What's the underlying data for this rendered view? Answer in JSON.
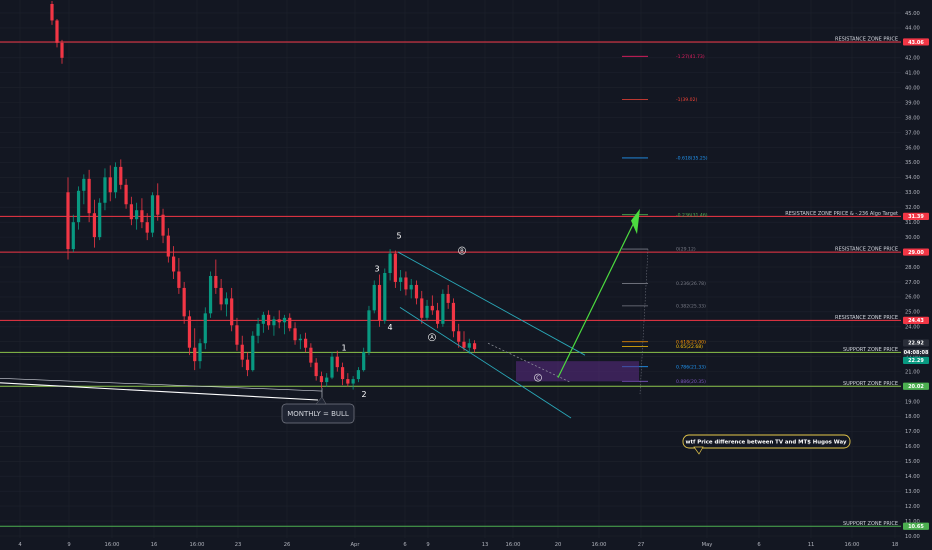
{
  "chart_data": {
    "type": "candlestick",
    "instrument_axis": {
      "y_range": [
        10.0,
        45.6
      ],
      "y_ticks": [
        "45.00",
        "44.00",
        "43.00",
        "42.00",
        "41.00",
        "40.00",
        "39.00",
        "38.00",
        "37.00",
        "36.00",
        "35.00",
        "34.00",
        "33.00",
        "32.00",
        "31.00",
        "30.00",
        "29.00",
        "28.00",
        "27.00",
        "26.00",
        "25.00",
        "24.00",
        "23.00",
        "22.00",
        "21.00",
        "20.00",
        "19.00",
        "18.00",
        "17.00",
        "16.00",
        "15.00",
        "14.00",
        "13.00",
        "12.00",
        "11.00",
        "10.00"
      ],
      "x_ticks": [
        "4",
        "9",
        "16:00",
        "16",
        "16:00",
        "23",
        "26",
        "Apr",
        "6",
        "9",
        "13",
        "16:00",
        "20",
        "16:00",
        "27",
        "May",
        "6",
        "11",
        "16:00",
        "18"
      ]
    },
    "price_badges": [
      {
        "label": "43.06",
        "y": 43.06,
        "color": "#f23645"
      },
      {
        "label": "31.39",
        "y": 31.39,
        "color": "#f23645"
      },
      {
        "label": "29.00",
        "y": 29.0,
        "color": "#f23645"
      },
      {
        "label": "24.43",
        "y": 24.43,
        "color": "#f23645"
      },
      {
        "label": "22.92",
        "y": 22.92,
        "color": "#2a2e39"
      },
      {
        "label": "04:08:08",
        "y": 22.3,
        "color": "#2a2e39"
      },
      {
        "label": "22.29",
        "y": 21.75,
        "color": "#089981"
      },
      {
        "label": "20.02",
        "y": 20.02,
        "color": "#4caf50"
      },
      {
        "label": "10.65",
        "y": 10.65,
        "color": "#4caf50"
      }
    ],
    "zones": [
      {
        "label": "RESISTANCE ZONE PRICE",
        "y": 43.06,
        "color": "#f23645"
      },
      {
        "label": "RESISTANCE ZONE PRICE & -.236 Algo Target",
        "y": 31.39,
        "color": "#f23645"
      },
      {
        "label": "RESISTANCE ZONE PRICE",
        "y": 29.0,
        "color": "#f23645"
      },
      {
        "label": "RESISTANCE ZONE PRICE",
        "y": 24.43,
        "color": "#f23645"
      },
      {
        "label": "SUPPORT ZONE PRICE",
        "y": 22.29,
        "color": "#8bc34a"
      },
      {
        "label": "SUPPORT ZONE PRICE",
        "y": 20.02,
        "color": "#8bc34a"
      },
      {
        "label": "SUPPORT ZONE PRICE",
        "y": 10.65,
        "color": "#4caf50"
      }
    ],
    "fib_levels": [
      {
        "label": "-1.27(41.73)",
        "y": 42.1,
        "color": "#e91e63"
      },
      {
        "label": "-1(39.02)",
        "y": 39.2,
        "color": "#f44336"
      },
      {
        "label": "-0.618(35.25)",
        "y": 35.3,
        "color": "#2196f3"
      },
      {
        "label": "-0.236(31.46)",
        "y": 31.5,
        "color": "#4caf50"
      },
      {
        "label": "0(29.12)",
        "y": 29.2,
        "color": "#787b86"
      },
      {
        "label": "0.236(26.78)",
        "y": 26.9,
        "color": "#787b86"
      },
      {
        "label": "0.382(25.33)",
        "y": 25.4,
        "color": "#787b86"
      },
      {
        "label": "0.618(23.00)",
        "y": 23.0,
        "color": "#ff9800"
      },
      {
        "label": "0.65(22.68)",
        "y": 22.68,
        "color": "#ffc107"
      },
      {
        "label": "0.786(21.33)",
        "y": 21.33,
        "color": "#2196f3"
      },
      {
        "label": "0.886(20.35)",
        "y": 20.35,
        "color": "#7e57c2"
      }
    ],
    "wave_labels": [
      "1",
      "2",
      "3",
      "4",
      "5",
      "A",
      "B",
      "C"
    ],
    "annotations": {
      "monthly": "MONTHLY = BULL",
      "note": "wtf Price difference between TV and MT$ Hugos Way"
    },
    "candles": [
      [
        45.6,
        45.8,
        44.2,
        44.5
      ],
      [
        44.5,
        44.6,
        42.7,
        43.0
      ],
      [
        43.0,
        43.2,
        41.6,
        42.0
      ],
      [
        33.0,
        34.0,
        28.5,
        29.2
      ],
      [
        29.2,
        31.5,
        29.0,
        31.0
      ],
      [
        31.0,
        33.4,
        30.5,
        33.1
      ],
      [
        33.1,
        34.2,
        32.2,
        33.9
      ],
      [
        33.9,
        34.5,
        31.0,
        31.6
      ],
      [
        31.6,
        32.5,
        29.3,
        30.0
      ],
      [
        30.0,
        32.6,
        29.8,
        32.3
      ],
      [
        32.3,
        34.6,
        31.8,
        34.0
      ],
      [
        34.0,
        34.8,
        32.4,
        33.0
      ],
      [
        33.0,
        35.0,
        32.6,
        34.7
      ],
      [
        34.7,
        35.2,
        33.2,
        33.5
      ],
      [
        33.5,
        33.9,
        31.9,
        32.2
      ],
      [
        32.2,
        32.7,
        30.8,
        31.2
      ],
      [
        31.2,
        32.3,
        30.5,
        31.8
      ],
      [
        31.8,
        32.6,
        30.6,
        31.0
      ],
      [
        31.0,
        31.6,
        29.8,
        30.3
      ],
      [
        30.3,
        33.0,
        30.0,
        32.8
      ],
      [
        32.8,
        33.6,
        31.1,
        31.5
      ],
      [
        31.5,
        31.9,
        29.6,
        30.1
      ],
      [
        30.1,
        30.6,
        28.3,
        28.7
      ],
      [
        28.7,
        29.4,
        27.2,
        27.7
      ],
      [
        27.7,
        28.6,
        26.2,
        26.6
      ],
      [
        26.6,
        27.0,
        24.2,
        24.7
      ],
      [
        24.7,
        25.1,
        22.1,
        22.6
      ],
      [
        22.6,
        23.9,
        21.1,
        21.7
      ],
      [
        21.7,
        23.2,
        21.2,
        22.9
      ],
      [
        22.9,
        25.3,
        22.5,
        24.9
      ],
      [
        24.9,
        27.7,
        24.6,
        27.4
      ],
      [
        27.4,
        28.5,
        26.2,
        26.6
      ],
      [
        26.6,
        27.2,
        25.1,
        25.5
      ],
      [
        25.5,
        26.3,
        24.7,
        25.9
      ],
      [
        25.9,
        26.6,
        23.7,
        24.1
      ],
      [
        24.1,
        24.6,
        22.4,
        22.8
      ],
      [
        22.8,
        23.4,
        21.3,
        21.8
      ],
      [
        21.8,
        22.3,
        20.7,
        21.1
      ],
      [
        21.1,
        23.7,
        21.0,
        23.4
      ],
      [
        23.4,
        24.6,
        22.9,
        24.2
      ],
      [
        24.2,
        25.0,
        23.6,
        24.8
      ],
      [
        24.8,
        25.1,
        23.8,
        24.1
      ],
      [
        24.1,
        24.7,
        23.4,
        24.5
      ],
      [
        24.5,
        25.1,
        23.9,
        24.3
      ],
      [
        24.3,
        24.8,
        23.5,
        24.6
      ],
      [
        24.6,
        24.9,
        23.7,
        23.9
      ],
      [
        23.9,
        24.3,
        22.8,
        23.1
      ],
      [
        23.1,
        23.5,
        22.5,
        23.2
      ],
      [
        23.2,
        23.6,
        22.3,
        22.6
      ],
      [
        22.6,
        22.9,
        21.3,
        21.6
      ],
      [
        21.6,
        21.9,
        20.4,
        20.7
      ],
      [
        20.7,
        21.0,
        19.9,
        20.3
      ],
      [
        20.3,
        20.9,
        20.0,
        20.6
      ],
      [
        20.6,
        22.3,
        20.5,
        22.0
      ],
      [
        22.0,
        22.4,
        21.0,
        21.3
      ],
      [
        21.3,
        21.6,
        20.1,
        20.5
      ],
      [
        20.5,
        20.9,
        20.0,
        20.2
      ],
      [
        20.2,
        20.7,
        19.8,
        20.5
      ],
      [
        20.5,
        21.3,
        20.3,
        21.1
      ],
      [
        21.1,
        22.6,
        21.0,
        22.3
      ],
      [
        22.3,
        25.4,
        22.1,
        25.1
      ],
      [
        25.1,
        27.1,
        24.9,
        26.8
      ],
      [
        26.8,
        27.5,
        24.0,
        24.4
      ],
      [
        24.4,
        27.9,
        24.2,
        27.6
      ],
      [
        27.6,
        29.2,
        27.1,
        28.9
      ],
      [
        28.9,
        29.1,
        26.6,
        27.0
      ],
      [
        27.0,
        27.8,
        26.4,
        27.3
      ],
      [
        27.3,
        27.7,
        26.1,
        26.5
      ],
      [
        26.5,
        27.2,
        25.9,
        26.8
      ],
      [
        26.8,
        27.1,
        25.5,
        25.9
      ],
      [
        25.9,
        26.4,
        24.2,
        24.6
      ],
      [
        24.6,
        25.8,
        24.4,
        25.4
      ],
      [
        25.4,
        26.1,
        24.8,
        25.1
      ],
      [
        25.1,
        25.6,
        23.9,
        24.2
      ],
      [
        24.2,
        26.5,
        24.0,
        26.2
      ],
      [
        26.2,
        26.8,
        25.2,
        25.6
      ],
      [
        25.6,
        25.9,
        23.3,
        23.7
      ],
      [
        23.7,
        24.2,
        22.6,
        23.0
      ],
      [
        23.0,
        23.7,
        22.4,
        22.6
      ],
      [
        22.6,
        23.2,
        22.2,
        22.9
      ],
      [
        22.9,
        23.1,
        22.3,
        22.5
      ]
    ]
  }
}
